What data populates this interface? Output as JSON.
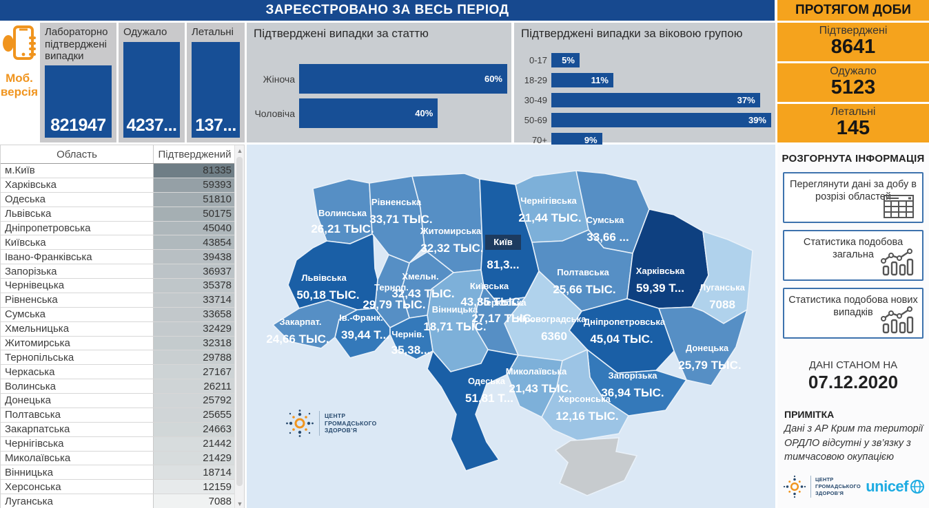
{
  "header": {
    "main_title": "ЗАРЕЄСТРОВАНО ЗА ВЕСЬ ПЕРІОД",
    "daily_title": "ПРОТЯГОМ ДОБИ"
  },
  "mobile": {
    "line1": "Моб.",
    "line2": "версія"
  },
  "kpi_cards": [
    {
      "label": "Лабораторно підтверджені випадки",
      "value": "821947"
    },
    {
      "label": "Одужало",
      "value": "4237..."
    },
    {
      "label": "Летальні",
      "value": "137..."
    }
  ],
  "gender_chart": {
    "title": "Підтверджені випадки за статтю",
    "bars": [
      {
        "label": "Жіноча",
        "pct": 60,
        "text": "60%"
      },
      {
        "label": "Чоловіча",
        "pct": 40,
        "text": "40%"
      }
    ]
  },
  "age_chart": {
    "title": "Підтверджені випадки за віковою групою",
    "bars": [
      {
        "label": "0-17",
        "pct": 5,
        "text": "5%"
      },
      {
        "label": "18-29",
        "pct": 11,
        "text": "11%"
      },
      {
        "label": "30-49",
        "pct": 37,
        "text": "37%"
      },
      {
        "label": "50-69",
        "pct": 39,
        "text": "39%"
      },
      {
        "label": "70+",
        "pct": 9,
        "text": "9%"
      }
    ]
  },
  "daily_cards": [
    {
      "label": "Підтверджені",
      "value": "8641"
    },
    {
      "label": "Одужало",
      "value": "5123"
    },
    {
      "label": "Летальні",
      "value": "145"
    }
  ],
  "table": {
    "columns": [
      "Область",
      "Підтверджений"
    ],
    "rows": [
      [
        "м.Київ",
        81335
      ],
      [
        "Харківська",
        59393
      ],
      [
        "Одеська",
        51810
      ],
      [
        "Львівська",
        50175
      ],
      [
        "Дніпропетровська",
        45040
      ],
      [
        "Київська",
        43854
      ],
      [
        "Івано-Франківська",
        39438
      ],
      [
        "Запорізька",
        36937
      ],
      [
        "Чернівецька",
        35378
      ],
      [
        "Рівненська",
        33714
      ],
      [
        "Сумська",
        33658
      ],
      [
        "Хмельницька",
        32429
      ],
      [
        "Житомирська",
        32318
      ],
      [
        "Тернопільська",
        29788
      ],
      [
        "Черкаська",
        27167
      ],
      [
        "Волинська",
        26211
      ],
      [
        "Донецька",
        25792
      ],
      [
        "Полтавська",
        25655
      ],
      [
        "Закарпатська",
        24663
      ],
      [
        "Чернігівська",
        21442
      ],
      [
        "Миколаївська",
        21429
      ],
      [
        "Вінницька",
        18714
      ],
      [
        "Херсонська",
        12159
      ],
      [
        "Луганська",
        7088
      ]
    ]
  },
  "map": {
    "regions": [
      {
        "id": "volyn",
        "name": "Волинська",
        "value_label": "26,21 ТЫС.",
        "cases": 26211
      },
      {
        "id": "rivne",
        "name": "Рівненська",
        "value_label": "33,71 ТЫС.",
        "cases": 33714
      },
      {
        "id": "zhytomyr",
        "name": "Житомирська",
        "value_label": "32,32 ТЫС.",
        "cases": 32318
      },
      {
        "id": "kyiv_city",
        "name": "Київ",
        "value_label": "81,3...",
        "cases": 81335
      },
      {
        "id": "kyiv_obl",
        "name": "Київська",
        "value_label": "43,85 ТЫС.",
        "cases": 43854
      },
      {
        "id": "chernihiv",
        "name": "Чернігівська",
        "value_label": "21,44 ТЫС.",
        "cases": 21442
      },
      {
        "id": "sumy",
        "name": "Сумська",
        "value_label": "33,66 ...",
        "cases": 33658
      },
      {
        "id": "poltava",
        "name": "Полтавська",
        "value_label": "25,66 ТЫС.",
        "cases": 25655
      },
      {
        "id": "kharkiv",
        "name": "Харківська",
        "value_label": "59,39 Т...",
        "cases": 59393
      },
      {
        "id": "luhansk",
        "name": "Луганська",
        "value_label": "7088",
        "cases": 7088
      },
      {
        "id": "donetsk",
        "name": "Донецька",
        "value_label": "25,79 ТЫС.",
        "cases": 25792
      },
      {
        "id": "dnipro",
        "name": "Дніпропетровська",
        "value_label": "45,04 ТЫС.",
        "cases": 45040
      },
      {
        "id": "zaporizhzhia",
        "name": "Запорізька",
        "value_label": "36,94 ТЫС.",
        "cases": 36937
      },
      {
        "id": "kirovohrad",
        "name": "Кіровоградська",
        "value_label": "6360",
        "cases": 6360
      },
      {
        "id": "cherkasy",
        "name": "Черкаська",
        "value_label": "27,17 ТЫС.",
        "cases": 27167
      },
      {
        "id": "vinnytsia",
        "name": "Вінницька",
        "value_label": "18,71 ТЫС.",
        "cases": 18714
      },
      {
        "id": "khmelnytskyi",
        "name": "Хмельн.",
        "value_label": "32,43 ТЫС.",
        "cases": 32429
      },
      {
        "id": "ternopil",
        "name": "Терноп.",
        "value_label": "29,79 ТЫС.",
        "cases": 29788
      },
      {
        "id": "lviv",
        "name": "Львівська",
        "value_label": "50,18 ТЫС.",
        "cases": 50175
      },
      {
        "id": "ivanofrankivsk",
        "name": "Ів.-Франк.",
        "value_label": "39,44 Т...",
        "cases": 39438
      },
      {
        "id": "zakarpattia",
        "name": "Закарпат.",
        "value_label": "24,66 ТЫС.",
        "cases": 24663
      },
      {
        "id": "chernivtsi",
        "name": "Чернів.",
        "value_label": "35,38...",
        "cases": 35378
      },
      {
        "id": "odesa",
        "name": "Одеська",
        "value_label": "51,81 Т...",
        "cases": 51810
      },
      {
        "id": "mykolaiv",
        "name": "Миколаївська",
        "value_label": "21,43 ТЫС.",
        "cases": 21429
      },
      {
        "id": "kherson",
        "name": "Херсонська",
        "value_label": "12,16 ТЫС.",
        "cases": 12159
      },
      {
        "id": "crimea",
        "name": "",
        "value_label": "",
        "cases": null
      }
    ],
    "attribution": {
      "line1": "ЦЕНТР",
      "line2": "ГРОМАДСЬКОГО",
      "line3": "ЗДОРОВ’Я"
    }
  },
  "side_panel": {
    "title": "РОЗГОРНУТА ІНФОРМАЦІЯ",
    "buttons": [
      {
        "label": "Переглянути дані за добу в розрізі областей",
        "icon": "table-icon"
      },
      {
        "label": "Статистика подобова загальна",
        "icon": "chart-icon"
      },
      {
        "label": "Статистика подобова нових випадків",
        "icon": "chart-icon"
      }
    ],
    "as_of_label": "ДАНІ СТАНОМ НА",
    "as_of_date": "07.12.2020",
    "note_title": "ПРИМІТКА",
    "note_text": "Дані з АР Крим та території ОРДЛО відсутні у зв’язку з тимчасовою окупацією",
    "unicef_label": "unicef"
  },
  "colors": {
    "header_blue": "#17498f",
    "bar_blue": "#174f96",
    "accent_orange": "#f5a31d",
    "mobile_orange": "#f0941e",
    "panel_grey": "#c9cdd1",
    "map_sea": "#dbe8f5",
    "crimea_grey": "#c7cbce",
    "unicef_blue": "#1cabe2"
  },
  "chart_data": [
    {
      "type": "bar",
      "title": "Підтверджені випадки за статтю",
      "categories": [
        "Жіноча",
        "Чоловіча"
      ],
      "values": [
        60,
        40
      ],
      "unit": "%",
      "orientation": "horizontal"
    },
    {
      "type": "bar",
      "title": "Підтверджені випадки за віковою групою",
      "categories": [
        "0-17",
        "18-29",
        "30-49",
        "50-69",
        "70+"
      ],
      "values": [
        5,
        11,
        37,
        39,
        9
      ],
      "unit": "%",
      "orientation": "horizontal"
    }
  ]
}
